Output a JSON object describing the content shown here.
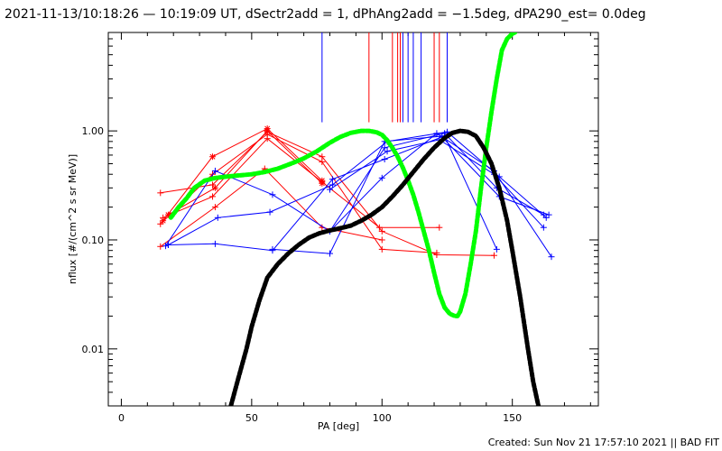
{
  "title": "2021-11-13/10:18:26 — 10:19:09 UT, dSectr2add = 1, dPhAng2add = −1.5deg, dPA290_est=  0.0deg",
  "footer": "Created: Sun Nov 21 17:57:10 2021 || BAD FIT",
  "chart_data": {
    "type": "scatter",
    "title": "2021-11-13/10:18:26 — 10:19:09 UT, dSectr2add = 1, dPhAng2add = −1.5deg, dPA290_est=  0.0deg",
    "xlabel": "PA [deg]",
    "ylabel": "nflux [#/(cm^2 s sr MeV)]",
    "xlim": [
      -5,
      183
    ],
    "ylim": [
      0.003,
      8.0
    ],
    "yscale": "log",
    "grid": false,
    "x_ticks": [
      0,
      50,
      100,
      150
    ],
    "x_tick_labels": [
      "0",
      "50",
      "100",
      "150"
    ],
    "y_ticks": [
      0.01,
      0.1,
      1.0
    ],
    "y_tick_labels": [
      "0.01",
      "0.10",
      "1.00"
    ],
    "colors": {
      "red": "#ff0000",
      "blue": "#0000ff",
      "green": "#00ff00",
      "black": "#000000"
    },
    "vertical_markers": {
      "y_bottom": 1.2,
      "blue_x": [
        77,
        108,
        110,
        112,
        115,
        125
      ],
      "red_x": [
        95,
        104,
        106,
        107,
        120,
        122
      ]
    },
    "series": [
      {
        "color": "red",
        "marker": "plus",
        "x": [
          15,
          35,
          56,
          77,
          100,
          121,
          143
        ],
        "y": [
          0.27,
          0.32,
          0.98,
          0.58,
          0.12,
          0.073,
          0.072
        ]
      },
      {
        "color": "red",
        "marker": "plus",
        "x": [
          15,
          35,
          56,
          77,
          100,
          121
        ],
        "y": [
          0.14,
          0.4,
          0.93,
          0.52,
          0.082,
          0.076
        ]
      },
      {
        "color": "red",
        "marker": "plus",
        "x": [
          16,
          35,
          56,
          77,
          99,
          122
        ],
        "y": [
          0.16,
          0.25,
          0.85,
          0.34,
          0.13,
          0.13
        ]
      },
      {
        "color": "red",
        "marker": "plus",
        "x": [
          15,
          36,
          55,
          77,
          100
        ],
        "y": [
          0.087,
          0.2,
          0.45,
          0.13,
          0.1
        ]
      },
      {
        "color": "red",
        "marker": "star",
        "x": [
          16,
          35,
          56,
          77
        ],
        "y": [
          0.15,
          0.58,
          1.05,
          0.35
        ]
      },
      {
        "color": "red",
        "marker": "star",
        "x": [
          18,
          36,
          56,
          77
        ],
        "y": [
          0.17,
          0.3,
          1.0,
          0.33
        ]
      },
      {
        "color": "blue",
        "marker": "plus",
        "x": [
          17,
          36,
          58,
          80,
          101,
          124,
          144,
          162
        ],
        "y": [
          0.088,
          0.43,
          0.26,
          0.12,
          0.7,
          0.95,
          0.3,
          0.17
        ]
      },
      {
        "color": "blue",
        "marker": "plus",
        "x": [
          18,
          37,
          57,
          81,
          102,
          125,
          145,
          163
        ],
        "y": [
          0.09,
          0.16,
          0.18,
          0.32,
          0.8,
          0.98,
          0.38,
          0.16
        ]
      },
      {
        "color": "blue",
        "marker": "plus",
        "x": [
          18,
          36,
          58,
          81,
          101,
          123,
          145,
          164
        ],
        "y": [
          0.09,
          0.092,
          0.08,
          0.36,
          0.55,
          0.88,
          0.25,
          0.17
        ]
      },
      {
        "color": "blue",
        "marker": "plus",
        "x": [
          58,
          80,
          101,
          124,
          144
        ],
        "y": [
          0.082,
          0.075,
          0.8,
          0.9,
          0.082
        ]
      },
      {
        "color": "blue",
        "marker": "plus",
        "x": [
          80,
          102,
          122,
          143,
          162
        ],
        "y": [
          0.29,
          0.65,
          0.83,
          0.4,
          0.13
        ]
      },
      {
        "color": "blue",
        "marker": "plus",
        "x": [
          80,
          100,
          121,
          143,
          165
        ],
        "y": [
          0.12,
          0.37,
          0.95,
          0.43,
          0.07
        ]
      }
    ],
    "fit_curves": [
      {
        "color": "green",
        "x": [
          19,
          22,
          25,
          28,
          32,
          36,
          40,
          45,
          50,
          55,
          60,
          65,
          70,
          75,
          80,
          84,
          88,
          92,
          95,
          98,
          100,
          102,
          104,
          106,
          108,
          110,
          112,
          114,
          116,
          118,
          120,
          122,
          124,
          126,
          128,
          129,
          130,
          132,
          134,
          136,
          138,
          140,
          142,
          144,
          146,
          148,
          150,
          151
        ],
        "y": [
          0.16,
          0.2,
          0.24,
          0.3,
          0.35,
          0.37,
          0.38,
          0.39,
          0.4,
          0.42,
          0.45,
          0.5,
          0.56,
          0.65,
          0.78,
          0.88,
          0.96,
          1.0,
          1.0,
          0.97,
          0.92,
          0.82,
          0.7,
          0.58,
          0.46,
          0.35,
          0.26,
          0.18,
          0.12,
          0.08,
          0.05,
          0.032,
          0.024,
          0.021,
          0.02,
          0.02,
          0.022,
          0.032,
          0.06,
          0.12,
          0.3,
          0.7,
          1.5,
          3.0,
          5.5,
          7.0,
          7.8,
          8.0
        ]
      },
      {
        "color": "black",
        "x": [
          42,
          45,
          48,
          50,
          53,
          56,
          60,
          64,
          68,
          72,
          76,
          80,
          84,
          88,
          92,
          96,
          100,
          104,
          108,
          112,
          116,
          120,
          124,
          127,
          130,
          133,
          136,
          139,
          142,
          145,
          148,
          150,
          153,
          156,
          158,
          160
        ],
        "y": [
          0.003,
          0.0055,
          0.01,
          0.016,
          0.028,
          0.045,
          0.06,
          0.075,
          0.09,
          0.105,
          0.115,
          0.122,
          0.128,
          0.135,
          0.15,
          0.17,
          0.2,
          0.25,
          0.32,
          0.42,
          0.55,
          0.7,
          0.86,
          0.96,
          1.0,
          0.98,
          0.9,
          0.7,
          0.5,
          0.3,
          0.15,
          0.08,
          0.03,
          0.01,
          0.005,
          0.003
        ]
      }
    ]
  }
}
